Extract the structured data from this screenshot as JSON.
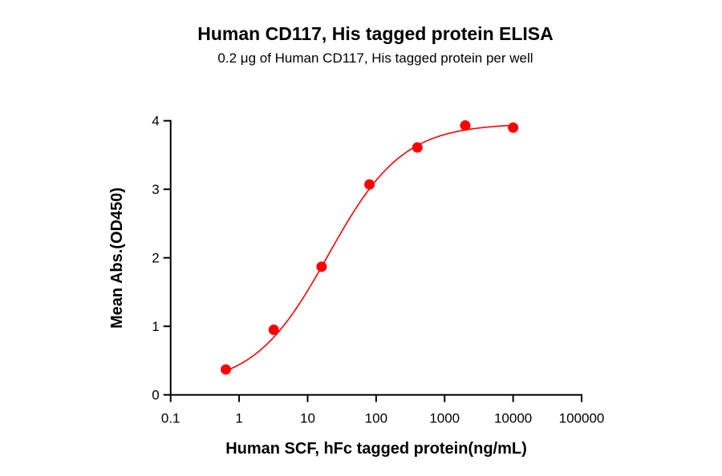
{
  "chart_data": {
    "type": "scatter",
    "title": "Human CD117, His tagged protein ELISA",
    "subtitle": "0.2 μg of Human CD117, His tagged protein per well",
    "xlabel": "Human SCF, hFc tagged protein(ng/mL)",
    "ylabel": "Mean Abs.(OD450)",
    "x_scale": "log",
    "xlim": [
      0.1,
      100000
    ],
    "ylim": [
      0,
      4
    ],
    "x_ticks": [
      "0.1",
      "1",
      "10",
      "100",
      "1000",
      "10000",
      "100000"
    ],
    "y_ticks": [
      "0",
      "1",
      "2",
      "3",
      "4"
    ],
    "grid": false,
    "fit_curve": "sigmoidal (4-parameter logistic)",
    "series": [
      {
        "x": [
          0.64,
          3.2,
          16,
          80,
          400,
          2000,
          10000
        ],
        "y": [
          0.37,
          0.95,
          1.87,
          3.07,
          3.61,
          3.93,
          3.9
        ],
        "color": "#ff0000"
      }
    ]
  }
}
